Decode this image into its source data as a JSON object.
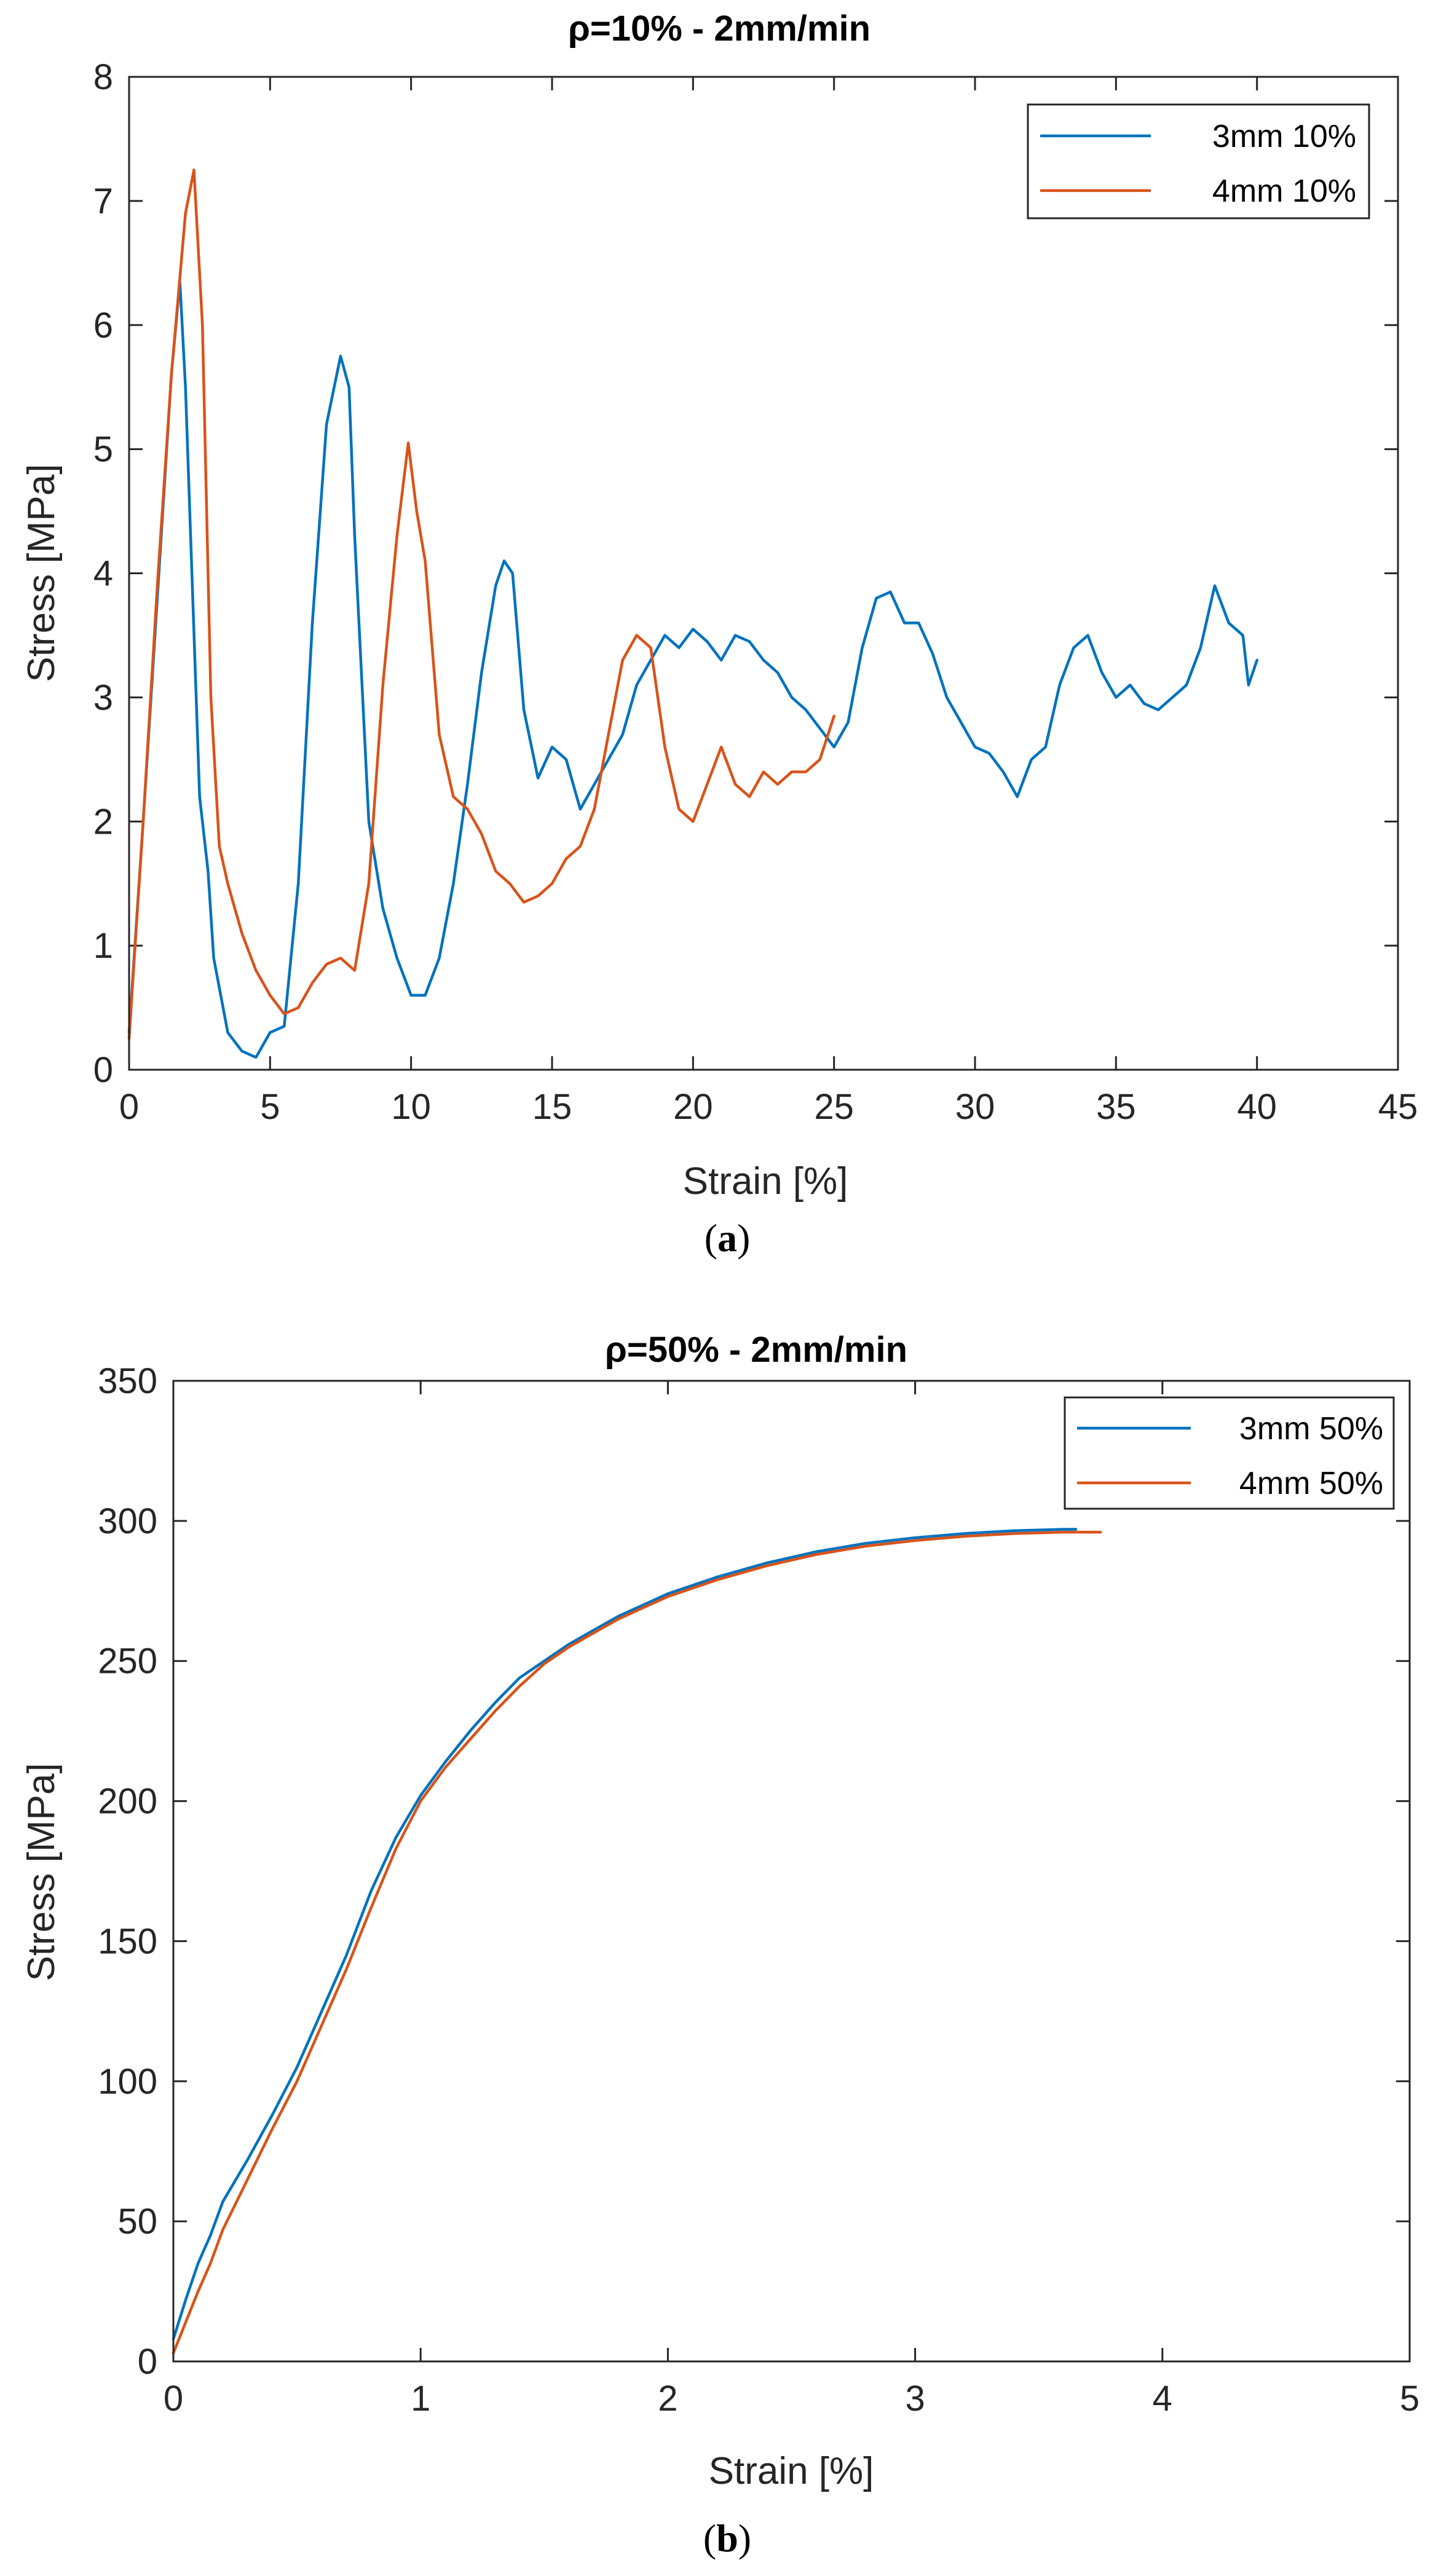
{
  "chart_data": [
    {
      "type": "line",
      "title": "ρ=10% - 2mm/min",
      "xlabel": "Strain [%]",
      "ylabel": "Stress [MPa]",
      "xlim": [
        0,
        45
      ],
      "ylim": [
        0,
        8
      ],
      "xticks": [
        0,
        5,
        10,
        15,
        20,
        25,
        30,
        35,
        40,
        45
      ],
      "yticks": [
        0,
        1,
        2,
        3,
        4,
        5,
        6,
        7,
        8
      ],
      "legend_position": "top-right",
      "caption": "a",
      "series": [
        {
          "name": "3mm 10%",
          "color": "#0072BD",
          "x": [
            0,
            0.5,
            1.0,
            1.5,
            1.8,
            2.0,
            2.5,
            2.8,
            3.0,
            3.5,
            4.0,
            4.5,
            5.0,
            5.5,
            6.0,
            6.5,
            7.0,
            7.5,
            7.8,
            8.0,
            8.5,
            9.0,
            9.5,
            10.0,
            10.5,
            11.0,
            11.5,
            12.0,
            12.5,
            13.0,
            13.3,
            13.6,
            14.0,
            14.5,
            15.0,
            15.5,
            16.0,
            16.5,
            17.0,
            17.5,
            18.0,
            18.5,
            19.0,
            19.5,
            20.0,
            20.5,
            21.0,
            21.5,
            22.0,
            22.5,
            23.0,
            23.5,
            24.0,
            24.5,
            25.0,
            25.5,
            26.0,
            26.5,
            27.0,
            27.5,
            28.0,
            28.5,
            29.0,
            29.5,
            30.0,
            30.5,
            31.0,
            31.5,
            32.0,
            32.5,
            33.0,
            33.5,
            34.0,
            34.5,
            35.0,
            35.5,
            36.0,
            36.5,
            37.0,
            37.5,
            38.0,
            38.5,
            39.0,
            39.5,
            39.7,
            40.0
          ],
          "y": [
            0.3,
            2.0,
            3.8,
            5.6,
            6.35,
            5.5,
            2.2,
            1.6,
            0.9,
            0.3,
            0.15,
            0.1,
            0.3,
            0.35,
            1.5,
            3.6,
            5.2,
            5.75,
            5.5,
            4.3,
            2.0,
            1.3,
            0.9,
            0.6,
            0.6,
            0.9,
            1.5,
            2.3,
            3.2,
            3.9,
            4.1,
            4.0,
            2.9,
            2.35,
            2.6,
            2.5,
            2.1,
            2.3,
            2.5,
            2.7,
            3.1,
            3.3,
            3.5,
            3.4,
            3.55,
            3.45,
            3.3,
            3.5,
            3.45,
            3.3,
            3.2,
            3.0,
            2.9,
            2.75,
            2.6,
            2.8,
            3.4,
            3.8,
            3.85,
            3.6,
            3.6,
            3.35,
            3.0,
            2.8,
            2.6,
            2.55,
            2.4,
            2.2,
            2.5,
            2.6,
            3.1,
            3.4,
            3.5,
            3.2,
            3.0,
            3.1,
            2.95,
            2.9,
            3.0,
            3.1,
            3.4,
            3.9,
            3.6,
            3.5,
            3.1,
            3.3
          ]
        },
        {
          "name": "4mm 10%",
          "color": "#D95319",
          "x": [
            0,
            0.5,
            1.0,
            1.5,
            2.0,
            2.3,
            2.6,
            2.9,
            3.2,
            3.5,
            4.0,
            4.5,
            5.0,
            5.5,
            6.0,
            6.5,
            7.0,
            7.5,
            8.0,
            8.5,
            9.0,
            9.5,
            9.9,
            10.2,
            10.5,
            11.0,
            11.5,
            12.0,
            12.5,
            13.0,
            13.5,
            14.0,
            14.5,
            15.0,
            15.5,
            16.0,
            16.5,
            17.0,
            17.5,
            18.0,
            18.5,
            19.0,
            19.5,
            20.0,
            20.5,
            21.0,
            21.5,
            22.0,
            22.5,
            23.0,
            23.5,
            24.0,
            24.5,
            25.0
          ],
          "y": [
            0.25,
            2.0,
            3.9,
            5.6,
            6.9,
            7.25,
            6.0,
            3.0,
            1.8,
            1.5,
            1.1,
            0.8,
            0.6,
            0.45,
            0.5,
            0.7,
            0.85,
            0.9,
            0.8,
            1.5,
            3.1,
            4.3,
            5.05,
            4.5,
            4.1,
            2.7,
            2.2,
            2.1,
            1.9,
            1.6,
            1.5,
            1.35,
            1.4,
            1.5,
            1.7,
            1.8,
            2.1,
            2.7,
            3.3,
            3.5,
            3.4,
            2.6,
            2.1,
            2.0,
            2.3,
            2.6,
            2.3,
            2.2,
            2.4,
            2.3,
            2.4,
            2.4,
            2.5,
            2.85
          ]
        }
      ]
    },
    {
      "type": "line",
      "title": "ρ=50% - 2mm/min",
      "xlabel": "Strain [%]",
      "ylabel": "Stress [MPa]",
      "xlim": [
        0,
        5
      ],
      "ylim": [
        0,
        350
      ],
      "xticks": [
        0,
        1,
        2,
        3,
        4,
        5
      ],
      "yticks": [
        0,
        50,
        100,
        150,
        200,
        250,
        300,
        350
      ],
      "legend_position": "top-right",
      "caption": "b",
      "series": [
        {
          "name": "3mm 50%",
          "color": "#0072BD",
          "x": [
            0,
            0.05,
            0.1,
            0.15,
            0.2,
            0.3,
            0.4,
            0.5,
            0.6,
            0.7,
            0.8,
            0.9,
            1.0,
            1.1,
            1.2,
            1.3,
            1.4,
            1.5,
            1.6,
            1.7,
            1.8,
            1.9,
            2.0,
            2.2,
            2.4,
            2.6,
            2.8,
            3.0,
            3.2,
            3.4,
            3.6,
            3.65
          ],
          "y": [
            8,
            22,
            35,
            45,
            57,
            72,
            88,
            105,
            125,
            145,
            168,
            187,
            202,
            214,
            225,
            235,
            244,
            250,
            256,
            261,
            266,
            270,
            274,
            280,
            285,
            289,
            292,
            294,
            295.5,
            296.5,
            297,
            297
          ]
        },
        {
          "name": "4mm 50%",
          "color": "#D95319",
          "x": [
            0,
            0.05,
            0.1,
            0.15,
            0.2,
            0.3,
            0.4,
            0.5,
            0.6,
            0.7,
            0.8,
            0.9,
            1.0,
            1.1,
            1.2,
            1.3,
            1.4,
            1.5,
            1.6,
            1.7,
            1.8,
            1.9,
            2.0,
            2.2,
            2.4,
            2.6,
            2.8,
            3.0,
            3.2,
            3.4,
            3.6,
            3.75
          ],
          "y": [
            3,
            14,
            25,
            35,
            47,
            65,
            83,
            100,
            120,
            140,
            162,
            183,
            200,
            212,
            222,
            232,
            241,
            249,
            255,
            260,
            265,
            269,
            273,
            279,
            284,
            288,
            291,
            293,
            294.5,
            295.5,
            296,
            296
          ]
        }
      ]
    }
  ]
}
